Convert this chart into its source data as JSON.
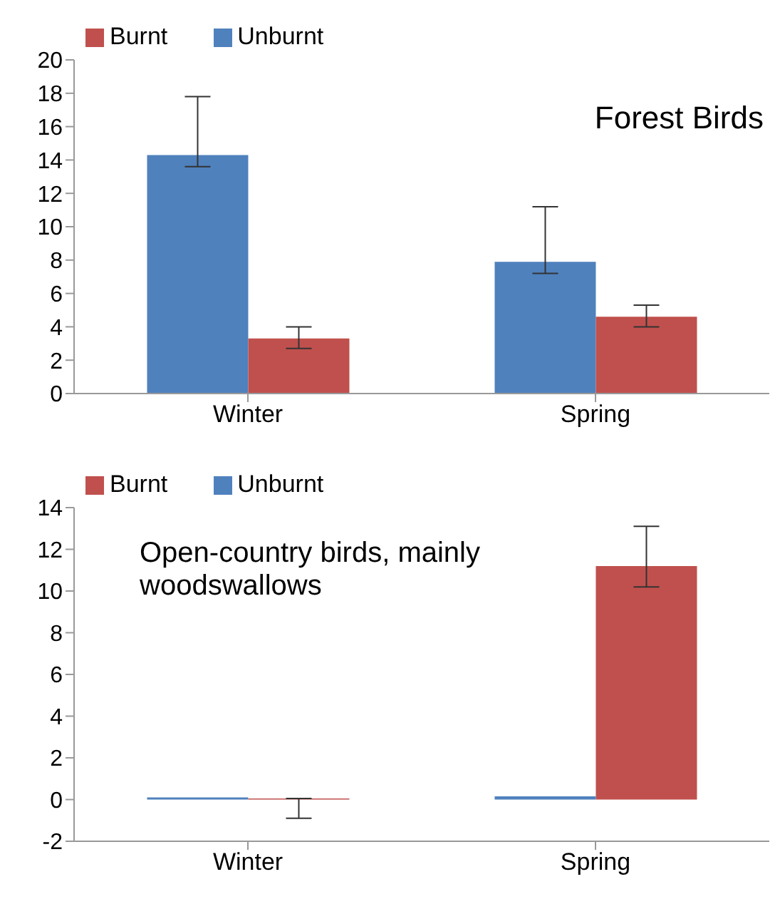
{
  "chart_data": [
    {
      "type": "bar",
      "categories": [
        "Winter",
        "Spring"
      ],
      "series": [
        {
          "name": "Unburnt",
          "color": "#4f81bd",
          "values": [
            14.3,
            7.9
          ],
          "errors": [
            [
              13.6,
              17.8
            ],
            [
              7.2,
              11.2
            ]
          ]
        },
        {
          "name": "Burnt",
          "color": "#c0504d",
          "values": [
            3.3,
            4.6
          ],
          "errors": [
            [
              2.7,
              4.0
            ],
            [
              4.0,
              5.3
            ]
          ]
        }
      ],
      "ylim": [
        0,
        20
      ],
      "yticks": [
        0,
        2,
        4,
        6,
        8,
        10,
        12,
        14,
        16,
        18,
        20
      ],
      "grid": false,
      "legend": "top left",
      "annotations": [
        "Forest Birds"
      ]
    },
    {
      "type": "bar",
      "categories": [
        "Winter",
        "Spring"
      ],
      "series": [
        {
          "name": "Unburnt",
          "color": "#4f81bd",
          "values": [
            0.1,
            0.15
          ]
        },
        {
          "name": "Burnt",
          "color": "#c0504d",
          "values": [
            0.05,
            11.2
          ],
          "errors": [
            [
              -0.9,
              0.05
            ],
            [
              10.2,
              13.1
            ]
          ]
        }
      ],
      "ylim": [
        -2,
        14
      ],
      "yticks": [
        -2,
        0,
        2,
        4,
        6,
        8,
        10,
        12,
        14
      ],
      "grid": false,
      "legend": "top left",
      "annotations": [
        "Open-country birds, mainly woodswallows"
      ]
    }
  ]
}
